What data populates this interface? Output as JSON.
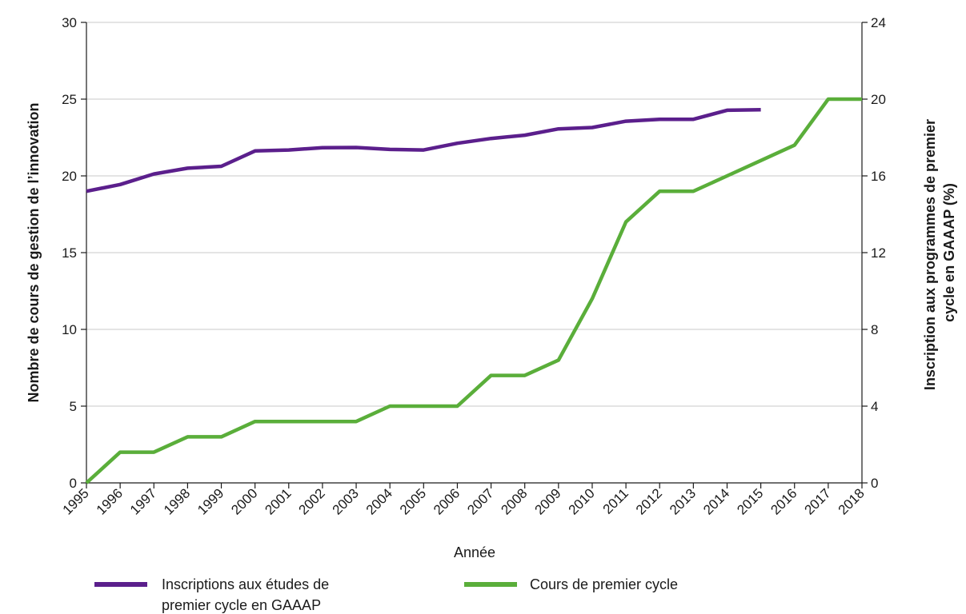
{
  "chart_data": {
    "type": "line",
    "xlabel": "Année",
    "ylabel_left": "Nombre de cours de gestion de l’innovation",
    "ylabel_right": [
      "Inscription aux programmes de premier",
      "cycle en GAAAP (%)"
    ],
    "y_left_lim": [
      0,
      30
    ],
    "y_left_ticks": [
      "0",
      "5",
      "10",
      "15",
      "20",
      "25",
      "30"
    ],
    "y_right_lim": [
      0,
      24
    ],
    "y_right_ticks": [
      "0",
      "4",
      "8",
      "12",
      "16",
      "20",
      "24"
    ],
    "grid": true,
    "legend_position": "bottom",
    "categories": [
      "1995",
      "1996",
      "1997",
      "1998",
      "1999",
      "2000",
      "2001",
      "2002",
      "2003",
      "2004",
      "2005",
      "2006",
      "2007",
      "2008",
      "2009",
      "2010",
      "2011",
      "2012",
      "2013",
      "2014",
      "2015",
      "2016",
      "2017",
      "2018"
    ],
    "series": [
      {
        "name_lines": [
          "Inscriptions aux études de",
          "premier cycle en GAAAP"
        ],
        "axis": "right",
        "color": "#5b1f8c",
        "values": [
          15.2,
          15.55,
          16.1,
          16.4,
          16.5,
          17.3,
          17.35,
          17.47,
          17.48,
          17.38,
          17.35,
          17.7,
          17.95,
          18.12,
          18.45,
          18.52,
          18.85,
          18.95,
          18.95,
          19.42,
          19.45,
          null,
          null,
          null
        ]
      },
      {
        "name_lines": [
          "Cours de premier cycle"
        ],
        "axis": "left",
        "color": "#5aae3a",
        "values": [
          0,
          2,
          2,
          3,
          3,
          4,
          4,
          4,
          4,
          5,
          5,
          5,
          7,
          7,
          8,
          12,
          17,
          19,
          19,
          20,
          21,
          22,
          25,
          25
        ]
      }
    ]
  }
}
